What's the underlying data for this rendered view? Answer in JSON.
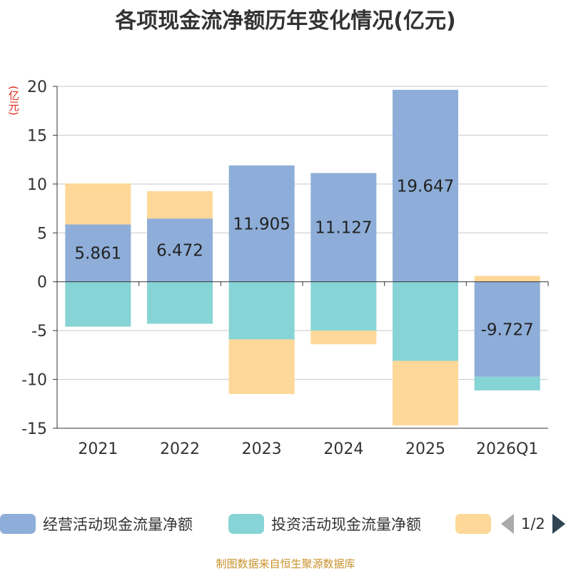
{
  "chart_data": {
    "type": "bar",
    "stacked": true,
    "title": "各项现金流净额历年变化情况(亿元)",
    "ylabel": "(亿元)",
    "xlabel": "",
    "ylim": [
      -15,
      20
    ],
    "yticks": [
      20,
      15,
      10,
      5,
      0,
      -5,
      -10,
      -15
    ],
    "categories": [
      "2021",
      "2022",
      "2023",
      "2024",
      "2025",
      "2026Q1"
    ],
    "series": [
      {
        "name": "经营活动现金流量净额",
        "color": "#8eaed9",
        "values": [
          5.861,
          6.472,
          11.905,
          11.127,
          19.647,
          -9.727
        ],
        "labels": [
          "5.861",
          "6.472",
          "11.905",
          "11.127",
          "19.647",
          "-9.727"
        ]
      },
      {
        "name": "投资活动现金流量净额",
        "color": "#87d4d6",
        "values": [
          -4.6,
          -4.3,
          -5.9,
          -5.0,
          -8.1,
          -1.4
        ]
      },
      {
        "name": "",
        "color": "#fed899",
        "values": [
          4.2,
          2.8,
          -5.6,
          -1.4,
          -6.6,
          0.6
        ]
      }
    ],
    "legend": {
      "position": "bottom",
      "page": "1/2"
    }
  },
  "footer": "制图数据来自恒生聚源数据库"
}
